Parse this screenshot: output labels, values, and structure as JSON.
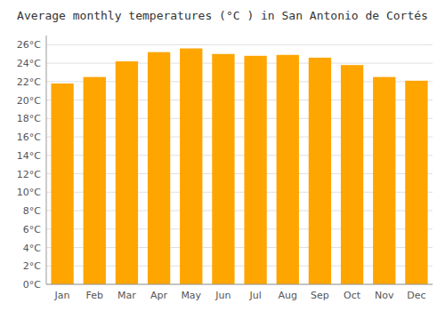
{
  "chart_data": {
    "type": "bar",
    "title": "Average monthly temperatures (°C ) in San Antonio de Cortés",
    "categories": [
      "Jan",
      "Feb",
      "Mar",
      "Apr",
      "May",
      "Jun",
      "Jul",
      "Aug",
      "Sep",
      "Oct",
      "Nov",
      "Dec"
    ],
    "values": [
      21.8,
      22.5,
      24.2,
      25.2,
      25.6,
      25.0,
      24.8,
      24.9,
      24.6,
      23.8,
      22.5,
      22.1
    ],
    "color": "#FFA500",
    "ylim": [
      0,
      27
    ],
    "yticks": [
      {
        "value": 0,
        "label": "0°C"
      },
      {
        "value": 2,
        "label": "2°C"
      },
      {
        "value": 4,
        "label": "4°C"
      },
      {
        "value": 6,
        "label": "6°C"
      },
      {
        "value": 8,
        "label": "8°C"
      },
      {
        "value": 10,
        "label": "10°C"
      },
      {
        "value": 12,
        "label": "12°C"
      },
      {
        "value": 14,
        "label": "14°C"
      },
      {
        "value": 16,
        "label": "16°C"
      },
      {
        "value": 18,
        "label": "18°C"
      },
      {
        "value": 20,
        "label": "20°C"
      },
      {
        "value": 22,
        "label": "22°C"
      },
      {
        "value": 24,
        "label": "24°C"
      },
      {
        "value": 26,
        "label": "26°C"
      }
    ],
    "grid": true
  }
}
